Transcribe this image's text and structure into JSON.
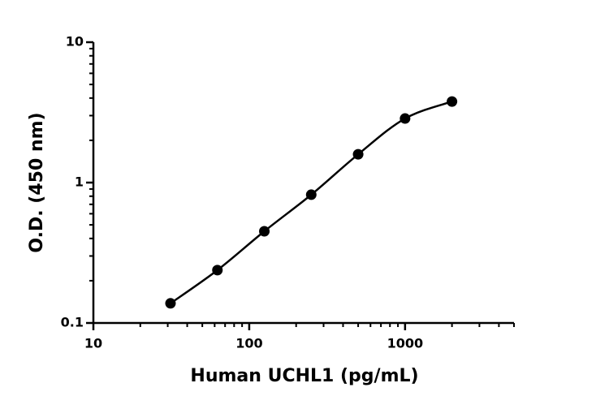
{
  "chart_data": {
    "type": "scatter",
    "x_label": "Human UCHL1 (pg/mL)",
    "y_label": "O.D. (450 nm)",
    "x": [
      31.25,
      62.5,
      125,
      250,
      500,
      1000,
      2000
    ],
    "series": [
      {
        "color": "#000000",
        "values": [
          0.138,
          0.238,
          0.45,
          0.82,
          1.59,
          2.86,
          3.78
        ]
      }
    ],
    "xscale": "log",
    "yscale": "log",
    "xlim": [
      10,
      5000
    ],
    "ylim": [
      0.1,
      10
    ],
    "xticks": [
      10,
      100,
      1000
    ],
    "yticks": [
      0.1,
      1,
      10
    ],
    "xminorticks": [
      20,
      30,
      40,
      50,
      60,
      70,
      80,
      90,
      200,
      300,
      400,
      500,
      600,
      700,
      800,
      900,
      2000,
      3000,
      4000,
      5000
    ],
    "yminorticks": [
      0.2,
      0.3,
      0.4,
      0.5,
      0.6,
      0.7,
      0.8,
      0.9,
      2,
      3,
      4,
      5,
      6,
      7,
      8,
      9
    ],
    "fit_curve": true
  }
}
